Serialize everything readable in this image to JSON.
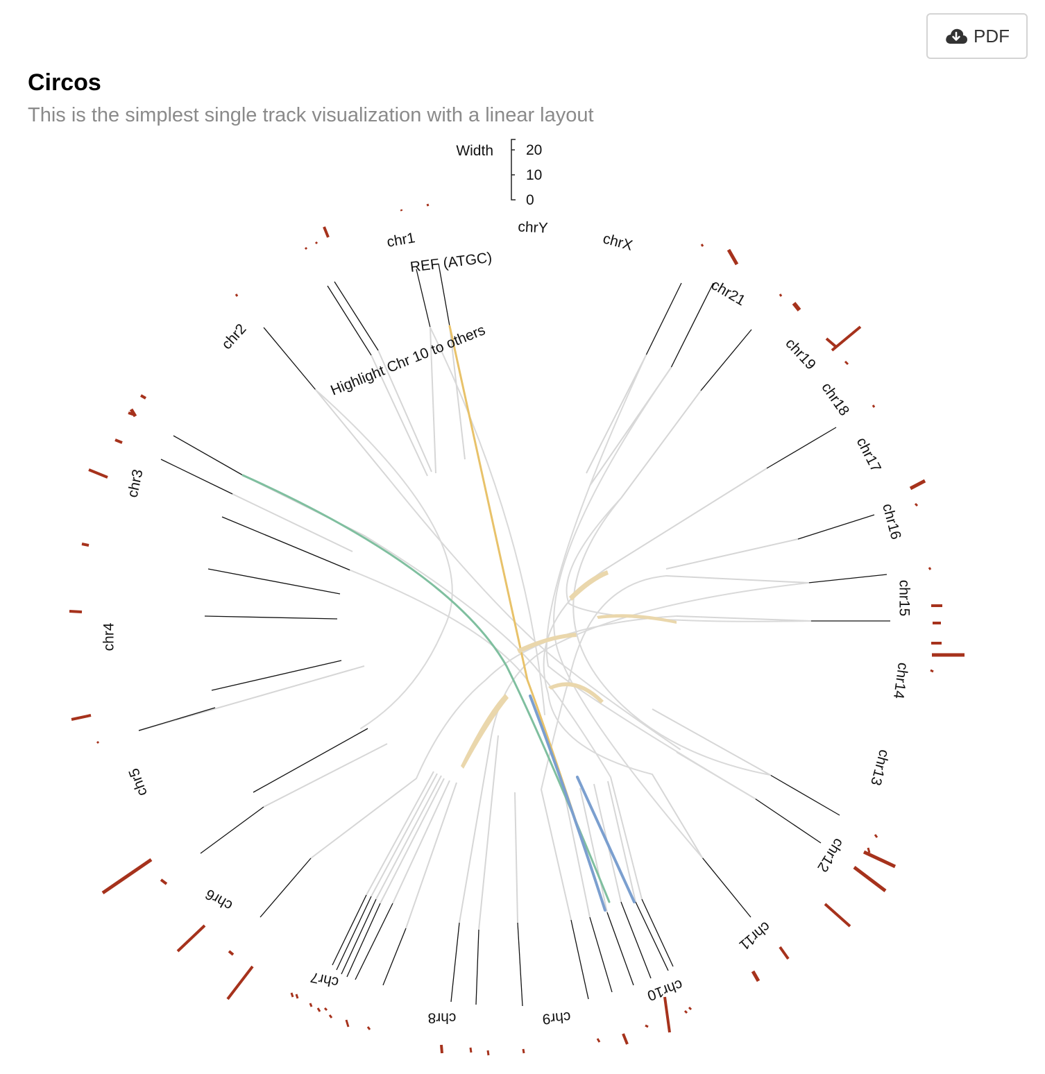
{
  "toolbar": {
    "pdf_label": "PDF",
    "pdf_icon": "cloud-download-icon"
  },
  "header": {
    "title": "Circos",
    "subtitle": "This is the simplest single track visualization with a linear layout"
  },
  "legend": {
    "label": "Width",
    "ticks": [
      "20",
      "10",
      "0"
    ]
  },
  "annotations": {
    "ref": "REF (ATGC)",
    "highlight": "Highlight Chr 10 to others"
  },
  "chromosomes": [
    "chr1",
    "chr2",
    "chr3",
    "chr4",
    "chr5",
    "chr6",
    "chr7",
    "chr8",
    "chr9",
    "chr10",
    "chr11",
    "chr12",
    "chr13",
    "chr14",
    "chr15",
    "chr16",
    "chr17",
    "chr18",
    "chr19",
    "chr21",
    "chrX",
    "chrY"
  ],
  "colors": {
    "bar": "#a6321c",
    "link_default": "#d9d9d9",
    "link_highlight_yellow": "#e8c26a",
    "link_highlight_green": "#7fbf9f",
    "link_highlight_blue": "#7b9fcf",
    "band_tan": "#ead7ac"
  }
}
